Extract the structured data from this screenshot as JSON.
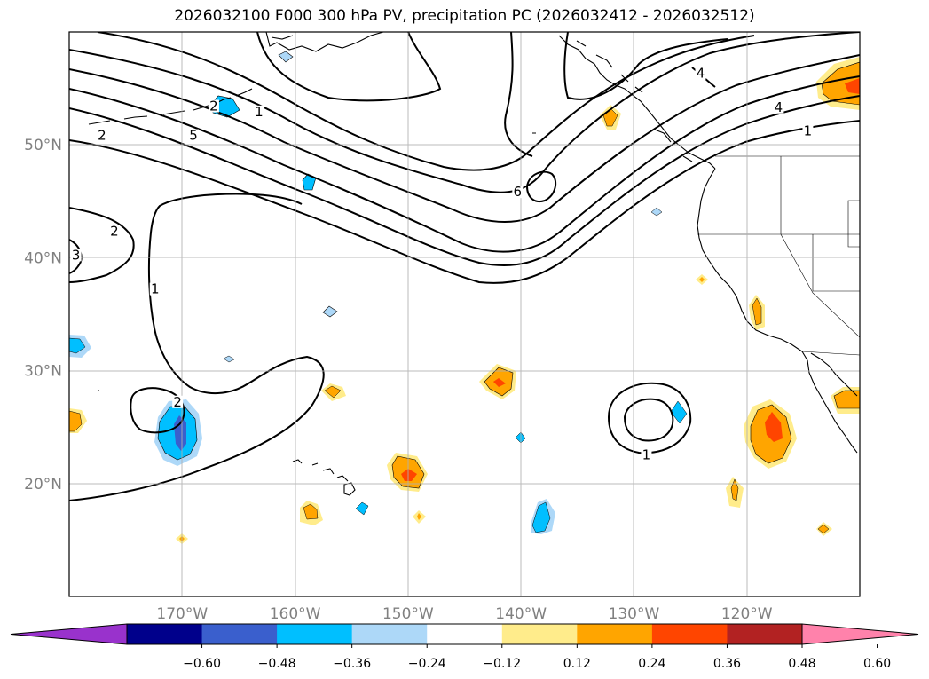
{
  "title": "2026032100 F000 300 hPa PV, precipitation PC (2026032412 - 2026032512)",
  "axes": {
    "lon_ticks": [
      {
        "lon": -170,
        "label": "170°W"
      },
      {
        "lon": -160,
        "label": "160°W"
      },
      {
        "lon": -150,
        "label": "150°W"
      },
      {
        "lon": -140,
        "label": "140°W"
      },
      {
        "lon": -130,
        "label": "130°W"
      },
      {
        "lon": -120,
        "label": "120°W"
      }
    ],
    "lat_ticks": [
      {
        "lat": 20,
        "label": "20°N"
      },
      {
        "lat": 30,
        "label": "30°N"
      },
      {
        "lat": 40,
        "label": "40°N"
      },
      {
        "lat": 50,
        "label": "50°N"
      }
    ],
    "lon_range": [
      -180,
      -110
    ],
    "lat_range": [
      10,
      60
    ],
    "grid": true
  },
  "colorbar": {
    "extend": "both",
    "colors": [
      "#9932cc",
      "#00008b",
      "#3a5fcd",
      "#00bfff",
      "#add8f8",
      "#ffffff",
      "#ffec8b",
      "#ffa500",
      "#ff4500",
      "#b22222",
      "#ff82ab"
    ],
    "labels": [
      "−0.60",
      "−0.48",
      "−0.36",
      "−0.24",
      "−0.12",
      "0.12",
      "0.24",
      "0.36",
      "0.48",
      "0.60"
    ]
  },
  "contour_labels": [
    {
      "text": "2",
      "lon": -167.2,
      "lat": 53.2
    },
    {
      "text": "1",
      "lon": -163.2,
      "lat": 52.7
    },
    {
      "text": "2",
      "lon": -177.1,
      "lat": 50.6
    },
    {
      "text": "5",
      "lon": -169.0,
      "lat": 50.6
    },
    {
      "text": "4",
      "lon": -124.1,
      "lat": 56.1
    },
    {
      "text": "4",
      "lon": -117.2,
      "lat": 53.1
    },
    {
      "text": "1",
      "lon": -114.6,
      "lat": 51.0
    },
    {
      "text": "6",
      "lon": -140.3,
      "lat": 45.6
    },
    {
      "text": "2",
      "lon": -176.0,
      "lat": 42.1
    },
    {
      "text": "3",
      "lon": -179.4,
      "lat": 40.0
    },
    {
      "text": "1",
      "lon": -172.4,
      "lat": 37.0
    },
    {
      "text": "2",
      "lon": -170.4,
      "lat": 27.0
    },
    {
      "text": "1",
      "lon": -128.9,
      "lat": 22.3
    }
  ]
}
